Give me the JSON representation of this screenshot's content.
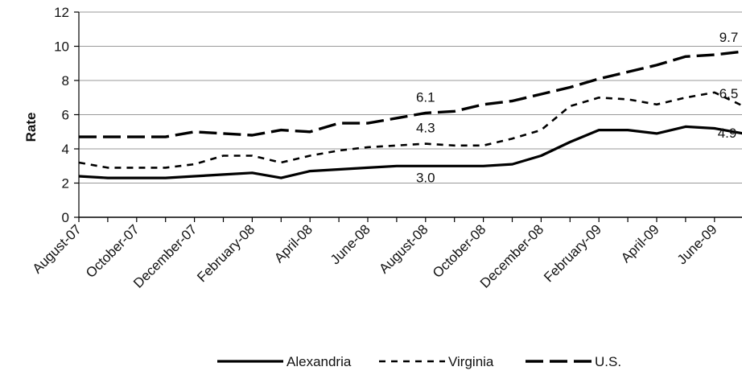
{
  "chart_data": {
    "type": "line",
    "ylabel": "Rate",
    "ylim": [
      0,
      12
    ],
    "yticks": [
      "0",
      "2",
      "4",
      "6",
      "8",
      "10",
      "12"
    ],
    "grid": true,
    "legend_position": "bottom",
    "x": [
      "August-07",
      "September-07",
      "October-07",
      "November-07",
      "December-07",
      "January-08",
      "February-08",
      "March-08",
      "April-08",
      "May-08",
      "June-08",
      "July-08",
      "August-08",
      "September-08",
      "October-08",
      "November-08",
      "December-08",
      "January-09",
      "February-09",
      "March-09",
      "April-09",
      "May-09",
      "June-09",
      "July-09"
    ],
    "xtick_labels": [
      "August-07",
      "October-07",
      "December-07",
      "February-08",
      "April-08",
      "June-08",
      "August-08",
      "October-08",
      "December-08",
      "February-09",
      "April-09",
      "June-09"
    ],
    "series": [
      {
        "name": "Alexandria",
        "color": "#000000",
        "style": "solid",
        "values": [
          2.4,
          2.3,
          2.3,
          2.3,
          2.4,
          2.5,
          2.6,
          2.3,
          2.7,
          2.8,
          2.9,
          3.0,
          3.0,
          3.0,
          3.0,
          3.1,
          3.6,
          4.4,
          5.1,
          5.1,
          4.9,
          5.3,
          5.2,
          4.9
        ]
      },
      {
        "name": "Virginia",
        "color": "#000000",
        "style": "short-dash",
        "values": [
          3.2,
          2.9,
          2.9,
          2.9,
          3.1,
          3.6,
          3.6,
          3.2,
          3.6,
          3.9,
          4.1,
          4.2,
          4.3,
          4.2,
          4.2,
          4.6,
          5.1,
          6.5,
          7.0,
          6.9,
          6.6,
          7.0,
          7.3,
          6.5
        ]
      },
      {
        "name": "U.S.",
        "color": "#000000",
        "style": "long-dash",
        "values": [
          4.7,
          4.7,
          4.7,
          4.7,
          5.0,
          4.9,
          4.8,
          5.1,
          5.0,
          5.5,
          5.5,
          5.8,
          6.1,
          6.2,
          6.6,
          6.8,
          7.2,
          7.6,
          8.1,
          8.5,
          8.9,
          9.4,
          9.5,
          9.7
        ]
      }
    ],
    "annotations": [
      {
        "text": "6.1",
        "series": "U.S.",
        "x": "August-08"
      },
      {
        "text": "4.3",
        "series": "Virginia",
        "x": "August-08"
      },
      {
        "text": "3.0",
        "series": "Alexandria",
        "x": "August-08"
      },
      {
        "text": "9.7",
        "series": "U.S.",
        "x": "July-09"
      },
      {
        "text": "6.5",
        "series": "Virginia",
        "x": "July-09"
      },
      {
        "text": "4.9",
        "series": "Alexandria",
        "x": "July-09"
      }
    ]
  }
}
